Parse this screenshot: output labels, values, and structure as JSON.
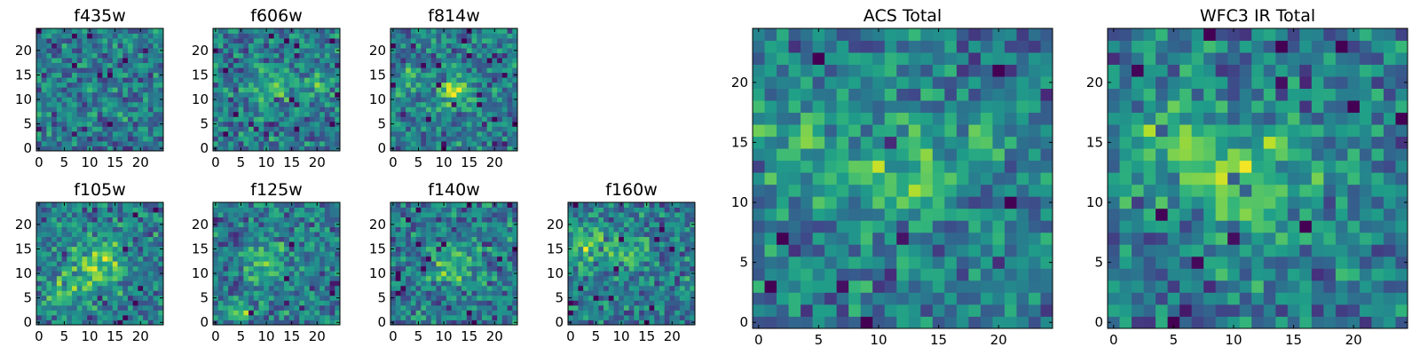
{
  "chart_data": [
    {
      "type": "heatmap",
      "title": "f435w",
      "grid_size": 25,
      "colormap": "viridis",
      "xticks": [
        "0",
        "5",
        "10",
        "15",
        "20"
      ],
      "yticks": [
        "0",
        "5",
        "10",
        "15",
        "20"
      ],
      "seed": 11,
      "blobs": []
    },
    {
      "type": "heatmap",
      "title": "f606w",
      "grid_size": 25,
      "colormap": "viridis",
      "xticks": [
        "0",
        "5",
        "10",
        "15",
        "20"
      ],
      "yticks": [
        "0",
        "5",
        "10",
        "15",
        "20"
      ],
      "seed": 23,
      "blobs": [
        {
          "x": 11,
          "y": 13,
          "r": 3,
          "a": 0.25
        },
        {
          "x": 20,
          "y": 13,
          "r": 2,
          "a": 0.2
        }
      ]
    },
    {
      "type": "heatmap",
      "title": "f814w",
      "grid_size": 25,
      "colormap": "viridis",
      "xticks": [
        "0",
        "5",
        "10",
        "15",
        "20"
      ],
      "yticks": [
        "0",
        "5",
        "10",
        "15",
        "20"
      ],
      "seed": 37,
      "blobs": [
        {
          "x": 12,
          "y": 12,
          "r": 2.5,
          "a": 0.35
        },
        {
          "x": 3,
          "y": 14,
          "r": 2,
          "a": 0.2
        }
      ]
    },
    {
      "type": "heatmap",
      "title": "f105w",
      "grid_size": 25,
      "colormap": "viridis",
      "xticks": [
        "0",
        "5",
        "10",
        "15",
        "20"
      ],
      "yticks": [
        "0",
        "5",
        "10",
        "15",
        "20"
      ],
      "seed": 41,
      "blobs": [
        {
          "x": 12,
          "y": 12,
          "r": 3.5,
          "a": 0.35
        },
        {
          "x": 5,
          "y": 6,
          "r": 3,
          "a": 0.2
        }
      ]
    },
    {
      "type": "heatmap",
      "title": "f125w",
      "grid_size": 25,
      "colormap": "viridis",
      "xticks": [
        "0",
        "5",
        "10",
        "15",
        "20"
      ],
      "yticks": [
        "0",
        "5",
        "10",
        "15",
        "20"
      ],
      "seed": 53,
      "blobs": [
        {
          "x": 10,
          "y": 12,
          "r": 3,
          "a": 0.25
        },
        {
          "x": 5,
          "y": 2,
          "r": 2,
          "a": 0.25
        }
      ]
    },
    {
      "type": "heatmap",
      "title": "f140w",
      "grid_size": 25,
      "colormap": "viridis",
      "xticks": [
        "0",
        "5",
        "10",
        "15",
        "20"
      ],
      "yticks": [
        "0",
        "5",
        "10",
        "15",
        "20"
      ],
      "seed": 67,
      "blobs": [
        {
          "x": 12,
          "y": 12,
          "r": 3,
          "a": 0.3
        }
      ]
    },
    {
      "type": "heatmap",
      "title": "f160w",
      "grid_size": 25,
      "colormap": "viridis",
      "xticks": [
        "0",
        "5",
        "10",
        "15",
        "20"
      ],
      "yticks": [
        "0",
        "5",
        "10",
        "15",
        "20"
      ],
      "seed": 79,
      "blobs": [
        {
          "x": 4,
          "y": 15,
          "r": 3,
          "a": 0.3
        },
        {
          "x": 12,
          "y": 14,
          "r": 2,
          "a": 0.25
        }
      ]
    },
    {
      "type": "heatmap",
      "title": "ACS Total",
      "grid_size": 25,
      "colormap": "viridis",
      "xticks": [
        "0",
        "5",
        "10",
        "15",
        "20"
      ],
      "yticks": [
        "0",
        "5",
        "10",
        "15",
        "20"
      ],
      "seed": 97,
      "blobs": [
        {
          "x": 12,
          "y": 12,
          "r": 2.5,
          "a": 0.3
        },
        {
          "x": 4,
          "y": 15,
          "r": 2.5,
          "a": 0.25
        },
        {
          "x": 19,
          "y": 15,
          "r": 2,
          "a": 0.2
        }
      ]
    },
    {
      "type": "heatmap",
      "title": "WFC3 IR Total",
      "grid_size": 25,
      "colormap": "viridis",
      "xticks": [
        "0",
        "5",
        "10",
        "15",
        "20"
      ],
      "yticks": [
        "0",
        "5",
        "10",
        "15",
        "20"
      ],
      "seed": 113,
      "blobs": [
        {
          "x": 12,
          "y": 12,
          "r": 3,
          "a": 0.4
        },
        {
          "x": 4,
          "y": 15,
          "r": 3,
          "a": 0.2
        }
      ]
    }
  ]
}
